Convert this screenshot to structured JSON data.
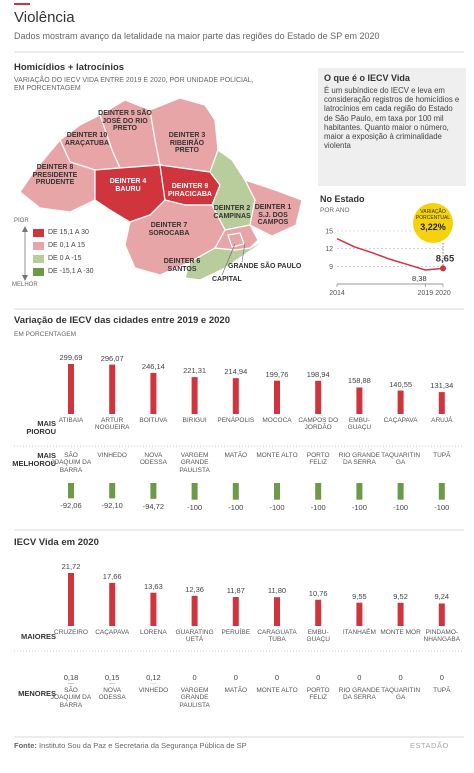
{
  "header": {
    "title": "Violência",
    "subtitle": "Dados mostram avanço da letalidade na maior parte das regiões do Estado de SP em 2020"
  },
  "map": {
    "title": "Homicídios + latrocínios",
    "subtitle": "VARIAÇÃO DO IECV VIDA ENTRE 2019 E 2020, POR UNIDADE POLICIAL, EM PORCENTAGEM",
    "scale_top": "PIOR",
    "scale_bottom": "MELHOR",
    "legend": [
      {
        "label": "DE 15,1 A 30",
        "color": "#d0353e"
      },
      {
        "label": "DE 0,1 A 15",
        "color": "#e8a5a7"
      },
      {
        "label": "DE 0 A -15",
        "color": "#b8cc9c"
      },
      {
        "label": "DE -15,1 A -30",
        "color": "#6c9a48"
      }
    ],
    "regions": [
      {
        "label": "DEINTER 5 SÃO JOSÉ DO RIO PRETO",
        "color": "#e8a5a7"
      },
      {
        "label": "DEINTER 10 ARAÇATUBA",
        "color": "#e8a5a7"
      },
      {
        "label": "DEINTER 3 RIBEIRÃO PRETO",
        "color": "#e8a5a7"
      },
      {
        "label": "DEINTER 8 PRESIDENTE PRUDENTE",
        "color": "#e8a5a7"
      },
      {
        "label": "DEINTER 4 BAURU",
        "color": "#d0353e"
      },
      {
        "label": "DEINTER 9 PIRACICABA",
        "color": "#d0353e"
      },
      {
        "label": "DEINTER 2 CAMPINAS",
        "color": "#b8cc9c"
      },
      {
        "label": "DEINTER 1 S.J. DOS CAMPOS",
        "color": "#e8a5a7"
      },
      {
        "label": "DEINTER 7 SOROCABA",
        "color": "#e8a5a7"
      },
      {
        "label": "DEINTER 6 SANTOS",
        "color": "#b8cc9c"
      },
      {
        "label": "GRANDE SÃO PAULO",
        "color": "#e8a5a7"
      },
      {
        "label": "CAPITAL",
        "color": "#e8a5a7"
      }
    ]
  },
  "sidebar": {
    "title": "O que é o IECV Vida",
    "text": "É um subíndice do IECV e leva em consideração registros de homicídios e latrocínios em cada região do Estado de São Paulo, em taxa por 100 mil habitantes. Quanto maior o número, maior a exposição à criminalidade violenta"
  },
  "chart_data": [
    {
      "type": "line",
      "title": "No Estado",
      "subtitle": "POR ANO",
      "x": [
        2014,
        2015,
        2016,
        2017,
        2018,
        2019,
        2020
      ],
      "values": [
        13.7,
        12.3,
        11.3,
        10.2,
        9.3,
        8.38,
        8.65
      ],
      "value_labels": [
        null,
        null,
        null,
        null,
        null,
        "8,38",
        "8,65"
      ],
      "color": "#d0353e",
      "xlim": [
        2014,
        2020
      ],
      "xticks": [
        2014,
        2019,
        2020
      ],
      "ylim": [
        6,
        15
      ],
      "yticks": [
        9,
        12,
        15
      ],
      "grid": true,
      "annotation": "VARIAÇÃO PORCENTUAL",
      "annotation_value": "3,22%"
    },
    {
      "type": "bar",
      "title": "Variação de IECV das cidades entre 2019 e 2020",
      "subtitle": "EM PORCENTAGEM",
      "series": [
        {
          "name": "MAIS PIOROU",
          "color": "#d0353e",
          "categories": [
            "ATIBAIA",
            "ARTUR NOGUEIRA",
            "BOITUVA",
            "BIRIGUI",
            "PENÁPOLIS",
            "MOCOCA",
            "CAMPOS DO JORDÃO",
            "EMBU-GUAÇU",
            "CAÇAPAVA",
            "ARUJÁ"
          ],
          "values": [
            299.69,
            296.07,
            246.14,
            221.31,
            214.94,
            199.76,
            198.94,
            158.88,
            140.55,
            131.34
          ],
          "value_labels": [
            "299,69",
            "296,07",
            "246,14",
            "221,31",
            "214,94",
            "199,76",
            "198,94",
            "158,88",
            "140,55",
            "131,34"
          ]
        },
        {
          "name": "MAIS MELHOROU",
          "color": "#6c9a48",
          "categories": [
            "SÃO JOAQUIM DA BARRA",
            "VINHEDO",
            "NOVA ODESSA",
            "VARGEM GRANDE PAULISTA",
            "MATÃO",
            "MONTE ALTO",
            "PORTO FELIZ",
            "RIO GRANDE DA SERRA",
            "TAQUARITINGA",
            "TUPÃ"
          ],
          "values": [
            -92.06,
            -92.1,
            -94.72,
            -100,
            -100,
            -100,
            -100,
            -100,
            -100,
            -100
          ],
          "value_labels": [
            "-92,06",
            "-92,10",
            "-94,72",
            "-100",
            "-100",
            "-100",
            "-100",
            "-100",
            "-100",
            "-100"
          ]
        }
      ]
    },
    {
      "type": "bar",
      "title": "IECV Vida em 2020",
      "series": [
        {
          "name": "MAIORES",
          "color": "#d0353e",
          "categories": [
            "CRUZEIRO",
            "CAÇAPAVA",
            "LORENA",
            "GUARATINGUETÁ",
            "PERUÍBE",
            "CARAGUATATUBA",
            "EMBU-GUAÇU",
            "ITANHAÉM",
            "MONTE MOR",
            "PINDAMO-NHANGABA"
          ],
          "values": [
            21.72,
            17.66,
            13.63,
            12.36,
            11.87,
            11.8,
            10.76,
            9.55,
            9.52,
            9.24
          ],
          "value_labels": [
            "21,72",
            "17,66",
            "13,63",
            "12,36",
            "11,87",
            "11,80",
            "10,76",
            "9,55",
            "9,52",
            "9,24"
          ]
        },
        {
          "name": "MENORES",
          "color": "#6c9a48",
          "categories": [
            "SÃO JOAQUIM DA BARRA",
            "NOVA ODESSA",
            "VINHEDO",
            "VARGEM GRANDE PAULISTA",
            "MATÃO",
            "MONTE ALTO",
            "PORTO FELIZ",
            "RIO GRANDE DA SERRA",
            "TAQUARITINGA",
            "TUPÃ"
          ],
          "values": [
            0.18,
            0.15,
            0.12,
            0,
            0,
            0,
            0,
            0,
            0,
            0
          ],
          "value_labels": [
            "0,18",
            "0,15",
            "0,12",
            "0",
            "0",
            "0",
            "0",
            "0",
            "0",
            "0"
          ]
        }
      ]
    }
  ],
  "footer": {
    "source_label": "Fonte:",
    "source": "Instituto Sou da Paz e Secretaria da Segurança Pública de SP",
    "brand": "ESTADÃO"
  }
}
